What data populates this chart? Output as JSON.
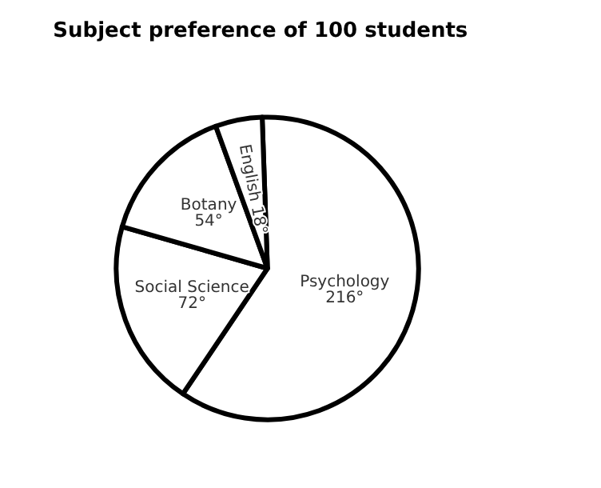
{
  "chart_data": {
    "type": "pie",
    "title": "Subject preference of 100 students",
    "categories": [
      "Psychology",
      "Social Science",
      "Botany",
      "English"
    ],
    "values": [
      216,
      72,
      54,
      18
    ],
    "value_labels": [
      "216°",
      "72°",
      "54°",
      "18°"
    ],
    "colors": [
      "#ffffff",
      "#ffffff",
      "#ffffff",
      "#ffffff"
    ],
    "legend": false
  }
}
